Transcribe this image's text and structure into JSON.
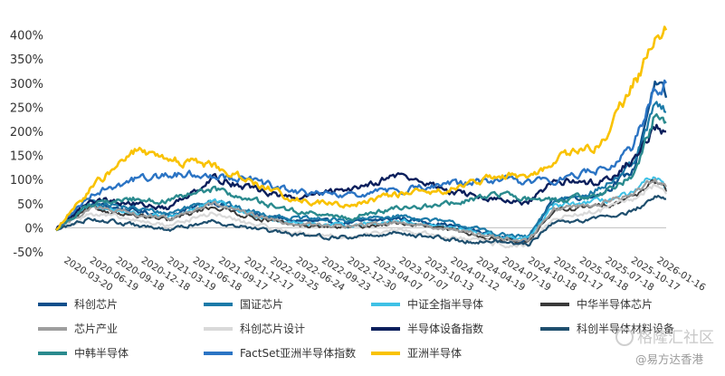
{
  "chart_data": {
    "type": "line",
    "title": "",
    "xlabel": "",
    "ylabel": "",
    "ylim": [
      -50,
      420
    ],
    "y_ticks": [
      -50,
      0,
      50,
      100,
      150,
      200,
      250,
      300,
      350,
      400
    ],
    "y_tick_labels": [
      "-50%",
      "0%",
      "50%",
      "100%",
      "150%",
      "200%",
      "250%",
      "300%",
      "350%",
      "400%"
    ],
    "x_range": [
      "2020-03-20",
      "2026-01-16"
    ],
    "x_tick_labels": [
      "2020-03-20",
      "2020-06-19",
      "2020-09-18",
      "2020-12-18",
      "2021-03-19",
      "2021-06-18",
      "2021-09-17",
      "2021-12-17",
      "2022-03-25",
      "2022-06-24",
      "2022-09-23",
      "2022-12-30",
      "2023-04-07",
      "2023-07-07",
      "2023-10-13",
      "2024-01-12",
      "2024-04-19",
      "2024-07-19",
      "2024-10-18",
      "2025-01-17",
      "2025-04-18",
      "2025-07-18",
      "2025-10-17",
      "2026-01-16"
    ],
    "grid": false,
    "legend_position": "bottom",
    "series": [
      {
        "name": "科创芯片",
        "color": "#0d4f8b",
        "width": 2.4,
        "x": [
          "2020-03-20",
          "2020-07-17",
          "2020-12-18",
          "2021-04-16",
          "2021-09-17",
          "2022-01-14",
          "2022-06-24",
          "2022-12-30",
          "2023-06-30",
          "2023-12-29",
          "2024-06-28",
          "2024-09-20",
          "2024-12-20",
          "2025-05-30",
          "2025-09-26",
          "2025-12-05",
          "2026-01-16"
        ],
        "values": [
          -5,
          50,
          35,
          25,
          55,
          30,
          15,
          10,
          20,
          5,
          -20,
          -25,
          60,
          70,
          120,
          300,
          270
        ]
      },
      {
        "name": "国证芯片",
        "color": "#1b7aa8",
        "width": 2.2,
        "x": [
          "2020-03-20",
          "2020-07-17",
          "2020-12-18",
          "2021-04-16",
          "2021-09-17",
          "2022-01-14",
          "2022-06-24",
          "2022-12-30",
          "2023-06-30",
          "2023-12-29",
          "2024-06-28",
          "2024-09-20",
          "2024-12-20",
          "2025-05-30",
          "2025-09-26",
          "2025-12-05",
          "2026-01-16"
        ],
        "values": [
          -5,
          55,
          40,
          30,
          60,
          35,
          20,
          15,
          25,
          10,
          -15,
          -20,
          55,
          80,
          130,
          250,
          240
        ]
      },
      {
        "name": "中证全指半导体",
        "color": "#3ec1e6",
        "width": 2.0,
        "x": [
          "2020-03-20",
          "2020-07-17",
          "2020-12-18",
          "2021-04-16",
          "2021-09-17",
          "2022-01-14",
          "2022-06-24",
          "2022-12-30",
          "2023-06-30",
          "2023-12-29",
          "2024-06-28",
          "2024-09-20",
          "2024-12-20",
          "2025-05-30",
          "2025-09-26",
          "2025-12-05",
          "2026-01-16"
        ],
        "values": [
          -5,
          45,
          30,
          20,
          55,
          30,
          10,
          5,
          15,
          0,
          -20,
          -25,
          45,
          55,
          70,
          110,
          80
        ]
      },
      {
        "name": "中华半导体芯片",
        "color": "#3a3a3a",
        "width": 2.0,
        "x": [
          "2020-03-20",
          "2020-07-17",
          "2020-12-18",
          "2021-04-16",
          "2021-09-17",
          "2022-01-14",
          "2022-06-24",
          "2022-12-30",
          "2023-06-30",
          "2023-12-29",
          "2024-06-28",
          "2024-09-20",
          "2024-12-20",
          "2025-05-30",
          "2025-09-26",
          "2025-12-05",
          "2026-01-16"
        ],
        "values": [
          -5,
          40,
          25,
          15,
          45,
          25,
          5,
          0,
          10,
          -5,
          -25,
          -30,
          35,
          45,
          65,
          100,
          75
        ]
      },
      {
        "name": "芯片产业",
        "color": "#9e9e9e",
        "width": 2.2,
        "x": [
          "2020-03-20",
          "2020-07-17",
          "2020-12-18",
          "2021-04-16",
          "2021-09-17",
          "2022-01-14",
          "2022-06-24",
          "2022-12-30",
          "2023-06-30",
          "2023-12-29",
          "2024-06-28",
          "2024-09-20",
          "2024-12-20",
          "2025-05-30",
          "2025-09-26",
          "2025-12-05",
          "2026-01-16"
        ],
        "values": [
          -5,
          42,
          28,
          18,
          50,
          28,
          8,
          3,
          12,
          -3,
          -22,
          -28,
          40,
          50,
          70,
          105,
          85
        ]
      },
      {
        "name": "科创芯片设计",
        "color": "#d9d9d9",
        "width": 2.2,
        "x": [
          "2020-03-20",
          "2020-07-17",
          "2020-12-18",
          "2021-04-16",
          "2021-09-17",
          "2022-01-14",
          "2022-06-24",
          "2022-12-30",
          "2023-06-30",
          "2023-12-29",
          "2024-06-28",
          "2024-09-20",
          "2024-12-20",
          "2025-05-30",
          "2025-09-26",
          "2025-12-05",
          "2026-01-16"
        ],
        "values": [
          -5,
          30,
          15,
          5,
          30,
          10,
          -10,
          -20,
          -5,
          -20,
          -35,
          -40,
          20,
          35,
          60,
          90,
          70
        ]
      },
      {
        "name": "半导体设备指数",
        "color": "#0b1f5c",
        "width": 2.4,
        "x": [
          "2020-03-20",
          "2020-07-17",
          "2020-12-18",
          "2021-04-16",
          "2021-09-17",
          "2022-01-14",
          "2022-06-24",
          "2022-12-30",
          "2023-06-30",
          "2023-12-29",
          "2024-06-28",
          "2024-09-20",
          "2024-12-20",
          "2025-05-30",
          "2025-09-26",
          "2025-12-05",
          "2026-01-16"
        ],
        "values": [
          -5,
          60,
          50,
          40,
          105,
          85,
          60,
          80,
          110,
          75,
          55,
          50,
          95,
          95,
          140,
          210,
          200
        ]
      },
      {
        "name": "科创半导体材料设备",
        "color": "#1f4f6e",
        "width": 2.2,
        "x": [
          "2020-03-20",
          "2020-07-17",
          "2020-12-18",
          "2021-04-16",
          "2021-09-17",
          "2022-01-14",
          "2022-06-24",
          "2022-12-30",
          "2023-06-30",
          "2023-12-29",
          "2024-06-28",
          "2024-09-20",
          "2024-12-20",
          "2025-05-30",
          "2025-09-26",
          "2025-12-05",
          "2026-01-16"
        ],
        "values": [
          -5,
          20,
          5,
          -5,
          15,
          0,
          -15,
          -20,
          -10,
          -25,
          -30,
          -35,
          10,
          20,
          35,
          65,
          60
        ]
      },
      {
        "name": "中韩半导体",
        "color": "#2a8a8e",
        "width": 2.4,
        "x": [
          "2020-03-20",
          "2020-07-17",
          "2020-12-18",
          "2021-04-16",
          "2021-09-17",
          "2022-01-14",
          "2022-06-24",
          "2022-12-30",
          "2023-06-30",
          "2023-12-29",
          "2024-06-28",
          "2024-09-20",
          "2024-12-20",
          "2025-05-30",
          "2025-09-26",
          "2025-12-05",
          "2026-01-16"
        ],
        "values": [
          -5,
          50,
          60,
          55,
          80,
          60,
          35,
          20,
          40,
          50,
          70,
          60,
          55,
          70,
          110,
          230,
          220
        ]
      },
      {
        "name": "FactSet亚洲半导体指数",
        "color": "#2b74c4",
        "width": 2.4,
        "x": [
          "2020-03-20",
          "2020-07-17",
          "2020-12-18",
          "2021-04-16",
          "2021-09-17",
          "2022-01-14",
          "2022-06-24",
          "2022-12-30",
          "2023-06-30",
          "2023-12-29",
          "2024-06-28",
          "2024-09-20",
          "2024-12-20",
          "2025-05-30",
          "2025-09-26",
          "2025-12-05",
          "2026-01-16"
        ],
        "values": [
          -5,
          70,
          100,
          110,
          110,
          100,
          75,
          65,
          80,
          90,
          100,
          95,
          100,
          120,
          170,
          290,
          300
        ]
      },
      {
        "name": "亚洲半导体",
        "color": "#f9c200",
        "width": 2.6,
        "x": [
          "2020-03-20",
          "2020-07-17",
          "2020-12-18",
          "2021-04-16",
          "2021-09-17",
          "2022-01-14",
          "2022-06-24",
          "2022-12-30",
          "2023-06-30",
          "2023-12-29",
          "2024-06-28",
          "2024-09-20",
          "2024-12-20",
          "2025-05-30",
          "2025-09-26",
          "2025-12-05",
          "2026-01-16"
        ],
        "values": [
          -5,
          80,
          160,
          140,
          130,
          100,
          60,
          45,
          70,
          80,
          110,
          100,
          140,
          170,
          300,
          380,
          410
        ]
      }
    ]
  },
  "watermark": {
    "text": "格隆汇社区",
    "sub": "@易方达香港"
  }
}
